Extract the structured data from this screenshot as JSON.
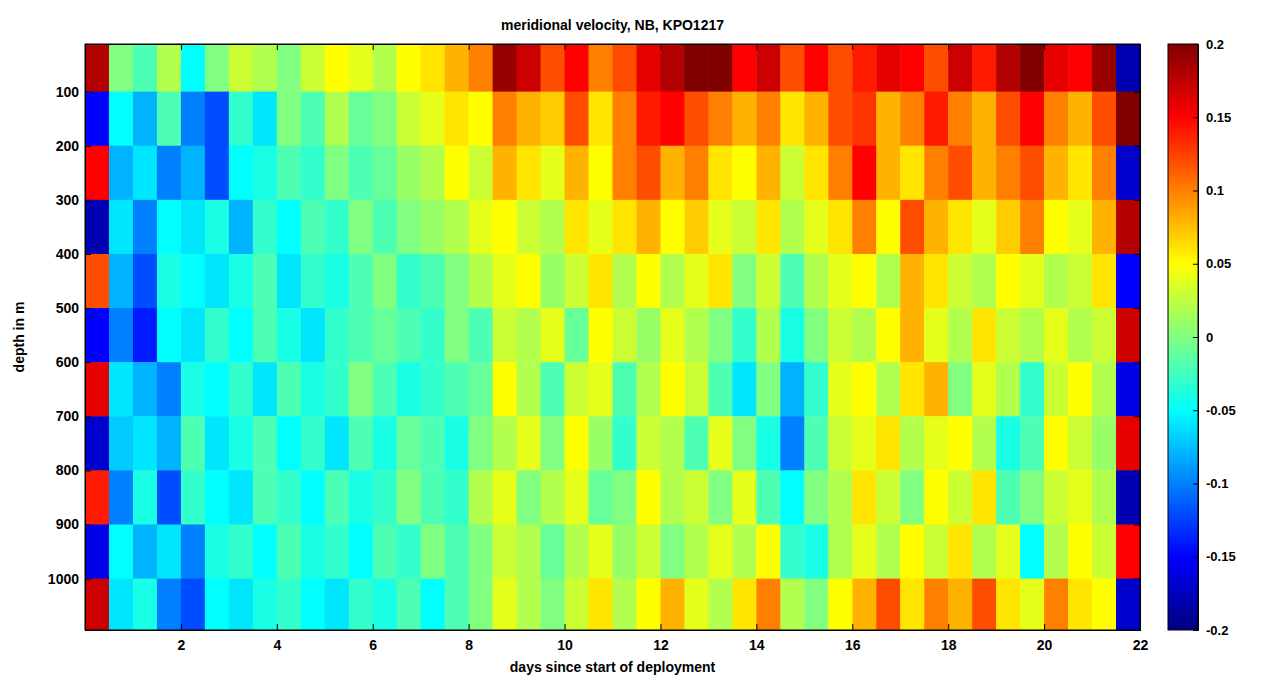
{
  "chart_data": {
    "type": "heatmap",
    "title": "meridional velocity, NB, KPO1217",
    "x_label": "days since start of deployment",
    "y_label": "depth in m",
    "xlim": [
      0,
      22
    ],
    "xticks": [
      2,
      4,
      6,
      8,
      10,
      12,
      14,
      16,
      18,
      20,
      22
    ],
    "ylim": [
      12,
      1095
    ],
    "yticks": [
      100,
      200,
      300,
      400,
      500,
      600,
      700,
      800,
      900,
      1000
    ],
    "x_edges": [
      0,
      0.5,
      1,
      1.5,
      2,
      2.5,
      3,
      3.5,
      4,
      4.5,
      5,
      5.5,
      6,
      6.5,
      7,
      7.5,
      8,
      8.5,
      9,
      9.5,
      10,
      10.5,
      11,
      11.5,
      12,
      12.5,
      13,
      13.5,
      14,
      14.5,
      15,
      15.5,
      16,
      16.5,
      17,
      17.5,
      18,
      18.5,
      19,
      19.5,
      20,
      20.5,
      21,
      21.5,
      22
    ],
    "y_edges": [
      12,
      100,
      200,
      300,
      400,
      500,
      600,
      700,
      800,
      900,
      1000,
      1095
    ],
    "z": [
      [
        0.18,
        0.0,
        -0.02,
        0.02,
        -0.05,
        0.0,
        0.03,
        0.02,
        0.0,
        0.03,
        0.05,
        0.04,
        0.02,
        0.05,
        0.06,
        0.08,
        0.1,
        0.19,
        0.17,
        0.12,
        0.15,
        0.1,
        0.12,
        0.16,
        0.18,
        0.2,
        0.2,
        0.15,
        0.17,
        0.12,
        0.15,
        0.12,
        0.14,
        0.16,
        0.15,
        0.12,
        0.17,
        0.14,
        0.18,
        0.2,
        0.16,
        0.15,
        0.19,
        -0.18
      ],
      [
        -0.15,
        -0.05,
        -0.08,
        -0.02,
        -0.1,
        -0.12,
        -0.03,
        -0.06,
        0.0,
        -0.02,
        0.02,
        -0.01,
        0.0,
        0.03,
        0.04,
        0.06,
        0.05,
        0.1,
        0.08,
        0.07,
        0.12,
        0.06,
        0.1,
        0.14,
        0.15,
        0.12,
        0.1,
        0.08,
        0.1,
        0.06,
        0.08,
        0.12,
        0.13,
        0.08,
        0.1,
        0.14,
        0.1,
        0.08,
        0.12,
        0.15,
        0.1,
        0.08,
        0.12,
        0.2
      ],
      [
        0.15,
        -0.08,
        -0.06,
        -0.1,
        -0.08,
        -0.12,
        -0.05,
        -0.04,
        -0.02,
        -0.03,
        0.0,
        -0.02,
        -0.01,
        0.01,
        0.02,
        0.05,
        0.03,
        0.08,
        0.06,
        0.04,
        0.08,
        0.05,
        0.1,
        0.12,
        0.08,
        0.1,
        0.06,
        0.05,
        0.08,
        0.03,
        0.06,
        0.1,
        0.15,
        0.08,
        0.06,
        0.1,
        0.12,
        0.08,
        0.1,
        0.12,
        0.08,
        0.06,
        0.1,
        -0.17
      ],
      [
        -0.18,
        -0.06,
        -0.1,
        -0.05,
        -0.06,
        -0.04,
        -0.08,
        -0.03,
        -0.05,
        -0.02,
        -0.03,
        0.0,
        -0.02,
        0.0,
        0.01,
        0.02,
        0.04,
        0.05,
        0.03,
        0.02,
        0.06,
        0.04,
        0.06,
        0.08,
        0.05,
        0.07,
        0.04,
        0.03,
        0.06,
        0.02,
        0.04,
        0.06,
        0.1,
        0.05,
        0.12,
        0.08,
        0.06,
        0.04,
        0.07,
        0.1,
        0.05,
        0.04,
        0.08,
        0.18
      ],
      [
        0.12,
        -0.08,
        -0.12,
        -0.04,
        -0.05,
        -0.06,
        -0.04,
        -0.02,
        -0.06,
        -0.03,
        -0.04,
        -0.02,
        0.0,
        -0.03,
        -0.02,
        0.0,
        0.02,
        0.04,
        0.05,
        0.01,
        0.03,
        0.06,
        0.02,
        0.05,
        0.02,
        0.04,
        0.06,
        0.0,
        0.03,
        -0.02,
        0.02,
        0.04,
        0.05,
        0.02,
        0.08,
        0.06,
        0.03,
        0.02,
        0.05,
        0.04,
        0.02,
        0.03,
        0.06,
        -0.15
      ],
      [
        -0.15,
        -0.1,
        -0.14,
        -0.05,
        -0.06,
        -0.03,
        -0.05,
        -0.02,
        -0.04,
        -0.06,
        -0.03,
        -0.02,
        -0.01,
        -0.02,
        -0.03,
        0.0,
        -0.02,
        0.03,
        0.02,
        0.04,
        -0.01,
        0.05,
        0.03,
        0.01,
        0.04,
        0.02,
        0.0,
        -0.03,
        0.02,
        -0.04,
        0.0,
        0.03,
        0.02,
        0.05,
        0.08,
        0.04,
        0.02,
        0.06,
        0.03,
        0.02,
        0.04,
        0.02,
        0.03,
        0.17
      ],
      [
        0.16,
        -0.06,
        -0.08,
        -0.1,
        -0.04,
        -0.05,
        -0.03,
        -0.06,
        -0.02,
        -0.04,
        -0.03,
        0.0,
        -0.02,
        -0.04,
        -0.03,
        -0.02,
        -0.01,
        0.05,
        0.02,
        -0.02,
        0.03,
        0.04,
        -0.02,
        0.02,
        0.05,
        0.03,
        -0.02,
        -0.06,
        0.0,
        -0.08,
        -0.03,
        0.04,
        0.05,
        0.02,
        0.06,
        0.08,
        0.0,
        0.04,
        0.02,
        -0.03,
        0.03,
        0.05,
        0.02,
        -0.16
      ],
      [
        -0.17,
        -0.07,
        -0.06,
        -0.08,
        -0.02,
        -0.06,
        -0.04,
        -0.02,
        -0.05,
        -0.03,
        -0.06,
        -0.02,
        -0.04,
        -0.01,
        -0.02,
        -0.04,
        0.0,
        0.02,
        0.04,
        0.0,
        0.05,
        0.01,
        -0.03,
        0.03,
        0.02,
        -0.02,
        0.04,
        0.0,
        -0.04,
        -0.1,
        -0.02,
        0.03,
        0.04,
        0.06,
        0.02,
        0.04,
        0.05,
        0.02,
        -0.04,
        -0.02,
        0.05,
        0.03,
        0.01,
        0.16
      ],
      [
        0.14,
        -0.1,
        -0.04,
        -0.12,
        -0.03,
        -0.05,
        -0.06,
        -0.02,
        -0.03,
        -0.05,
        -0.02,
        -0.04,
        -0.03,
        0.0,
        -0.02,
        -0.03,
        0.02,
        0.04,
        0.0,
        0.02,
        0.04,
        -0.01,
        0.0,
        0.05,
        0.02,
        0.03,
        0.0,
        0.04,
        -0.02,
        -0.05,
        0.0,
        0.02,
        0.06,
        0.03,
        0.0,
        0.05,
        0.03,
        0.06,
        -0.02,
        0.0,
        0.03,
        0.04,
        0.02,
        -0.18
      ],
      [
        -0.16,
        -0.05,
        -0.08,
        -0.06,
        -0.1,
        -0.04,
        -0.03,
        -0.05,
        -0.02,
        -0.04,
        -0.03,
        -0.05,
        -0.02,
        -0.03,
        0.0,
        -0.02,
        0.0,
        0.03,
        0.02,
        -0.01,
        0.02,
        0.04,
        0.01,
        0.03,
        0.0,
        0.02,
        0.04,
        0.02,
        0.05,
        -0.03,
        -0.04,
        0.02,
        0.04,
        0.02,
        0.05,
        0.03,
        0.06,
        0.02,
        0.04,
        -0.05,
        0.02,
        0.05,
        0.03,
        0.15
      ],
      [
        0.17,
        -0.06,
        -0.04,
        -0.1,
        -0.12,
        -0.05,
        -0.06,
        -0.04,
        -0.03,
        -0.05,
        -0.06,
        -0.03,
        -0.04,
        -0.02,
        -0.05,
        -0.02,
        0.0,
        0.04,
        0.02,
        0.0,
        0.03,
        0.06,
        0.02,
        0.05,
        0.08,
        0.04,
        0.02,
        0.06,
        0.1,
        0.02,
        0.0,
        0.05,
        0.08,
        0.12,
        0.06,
        0.1,
        0.08,
        0.12,
        0.06,
        0.04,
        0.1,
        0.06,
        0.05,
        -0.17
      ]
    ],
    "colorbar_range": [
      -0.2,
      0.2
    ],
    "colorbar_ticks": [
      -0.2,
      -0.15,
      -0.1,
      -0.05,
      0,
      0.05,
      0.1,
      0.15,
      0.2
    ]
  }
}
